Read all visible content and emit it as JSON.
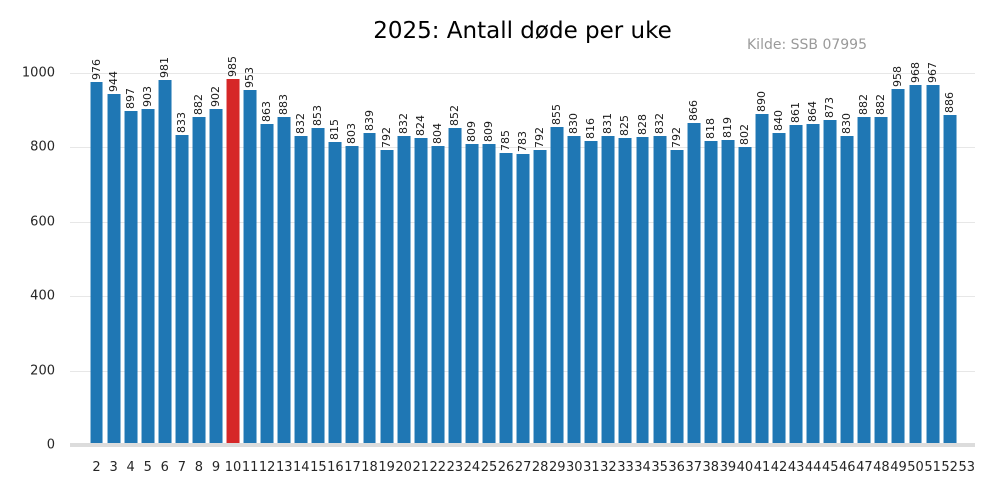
{
  "chart_data": {
    "type": "bar",
    "title": "2025: Antall døde per uke",
    "source": "Kilde: SSB 07995",
    "xlabel": "",
    "ylabel": "",
    "categories": [
      "2",
      "3",
      "4",
      "5",
      "6",
      "7",
      "8",
      "9",
      "10",
      "11",
      "12",
      "13",
      "14",
      "15",
      "16",
      "17",
      "18",
      "19",
      "20",
      "21",
      "22",
      "23",
      "24",
      "25",
      "26",
      "27",
      "28",
      "29",
      "30",
      "31",
      "32",
      "33",
      "34",
      "35",
      "36",
      "37",
      "38",
      "39",
      "40",
      "41",
      "42",
      "43",
      "44",
      "45",
      "46",
      "47",
      "48",
      "49",
      "50",
      "51",
      "52",
      "53"
    ],
    "values": [
      976,
      944,
      897,
      903,
      981,
      833,
      882,
      902,
      985,
      953,
      863,
      883,
      832,
      853,
      815,
      803,
      839,
      792,
      832,
      824,
      804,
      852,
      809,
      809,
      785,
      783,
      792,
      855,
      830,
      816,
      831,
      825,
      828,
      832,
      792,
      866,
      818,
      819,
      802,
      890,
      840,
      861,
      864,
      873,
      830,
      882,
      882,
      958,
      968,
      967,
      886,
      null
    ],
    "highlight_category": "10",
    "highlight_value": 985,
    "bar_value_labels_shown": true,
    "ylim": [
      0,
      1000
    ],
    "yticks": [
      0,
      200,
      400,
      600,
      800,
      1000
    ],
    "grid": true,
    "legend": "none",
    "bar_color": "#1f77b4",
    "highlight_color": "#d62728",
    "grid_color": "#e7e7e7",
    "baseline_color": "#dcdcdc",
    "title_color": "#000000",
    "source_color": "#9a9a9a",
    "tick_color": "#262626"
  }
}
